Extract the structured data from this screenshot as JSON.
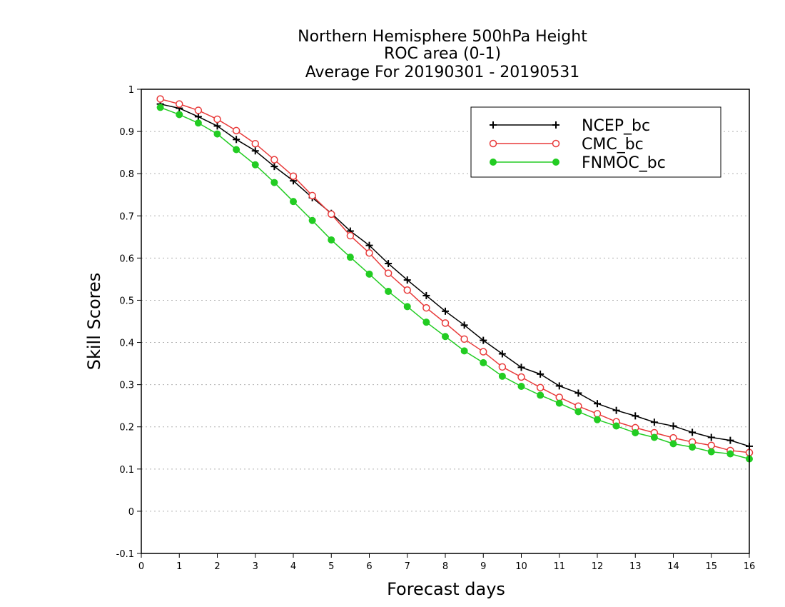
{
  "chart_data": {
    "type": "line",
    "title_lines": [
      "Northern Hemisphere 500hPa Height",
      "ROC area (0-1)",
      "Average For 20190301 - 20190531"
    ],
    "xlabel": "Forecast days",
    "ylabel": "Skill Scores",
    "xlim": [
      0,
      16
    ],
    "ylim": [
      -0.1,
      1
    ],
    "x_ticks": [
      "0",
      "1",
      "2",
      "3",
      "4",
      "5",
      "6",
      "7",
      "8",
      "9",
      "10",
      "11",
      "12",
      "13",
      "14",
      "15",
      "16"
    ],
    "y_ticks": [
      "-0.1",
      "0",
      "0.1",
      "0.2",
      "0.3",
      "0.4",
      "0.5",
      "0.6",
      "0.7",
      "0.8",
      "0.9",
      "1"
    ],
    "grid": true,
    "legend_position": "top-right",
    "x": [
      0.5,
      1,
      1.5,
      2,
      2.5,
      3,
      3.5,
      4,
      4.5,
      5,
      5.5,
      6,
      6.5,
      7,
      7.5,
      8,
      8.5,
      9,
      9.5,
      10,
      10.5,
      11,
      11.5,
      12,
      12.5,
      13,
      13.5,
      14,
      14.5,
      15,
      15.5,
      16
    ],
    "series": [
      {
        "name": "NCEP_bc",
        "color": "#000000",
        "marker": "plus",
        "values": [
          0.965,
          0.955,
          0.935,
          0.913,
          0.881,
          0.854,
          0.817,
          0.783,
          0.743,
          0.706,
          0.664,
          0.63,
          0.587,
          0.548,
          0.511,
          0.474,
          0.441,
          0.405,
          0.373,
          0.341,
          0.325,
          0.297,
          0.28,
          0.255,
          0.239,
          0.226,
          0.211,
          0.202,
          0.187,
          0.175,
          0.168,
          0.154
        ]
      },
      {
        "name": "CMC_bc",
        "color": "#e83a3a",
        "marker": "open-circle",
        "values": [
          0.977,
          0.965,
          0.95,
          0.929,
          0.902,
          0.871,
          0.833,
          0.794,
          0.748,
          0.704,
          0.653,
          0.612,
          0.564,
          0.524,
          0.482,
          0.446,
          0.408,
          0.378,
          0.342,
          0.318,
          0.293,
          0.27,
          0.249,
          0.231,
          0.212,
          0.198,
          0.186,
          0.174,
          0.164,
          0.156,
          0.144,
          0.139
        ]
      },
      {
        "name": "FNMOC_bc",
        "color": "#22cc22",
        "marker": "filled-circle",
        "values": [
          0.957,
          0.94,
          0.92,
          0.894,
          0.857,
          0.821,
          0.779,
          0.734,
          0.689,
          0.643,
          0.602,
          0.562,
          0.521,
          0.485,
          0.448,
          0.414,
          0.38,
          0.352,
          0.32,
          0.296,
          0.275,
          0.256,
          0.236,
          0.217,
          0.202,
          0.186,
          0.175,
          0.16,
          0.152,
          0.141,
          0.136,
          0.124
        ]
      }
    ]
  }
}
